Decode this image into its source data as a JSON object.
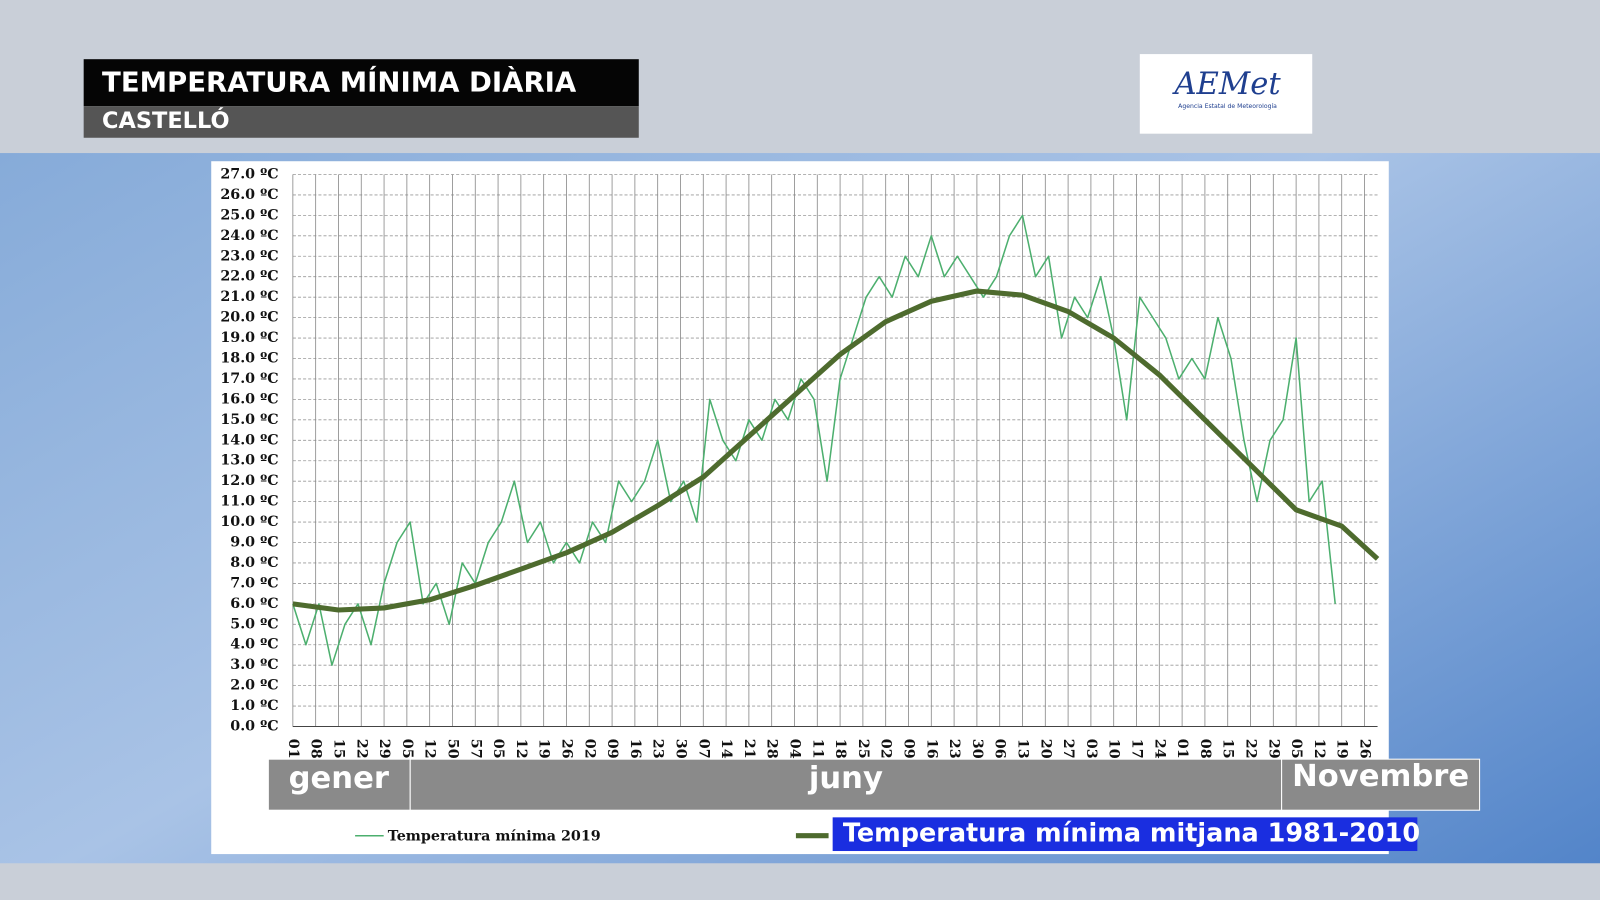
{
  "header": {
    "title": "TEMPERATURA MÍNIMA DIÀRIA",
    "subtitle": "CASTELLÓ"
  },
  "logo": {
    "name": "AEMet",
    "caption": "Agencia Estatal de Meteorología"
  },
  "chart_data": {
    "type": "line",
    "month_bands": [
      "gener",
      "juny",
      "Novembre"
    ],
    "xlim": [
      1,
      334
    ],
    "xticks": [
      {
        "value": 1,
        "label": "01"
      },
      {
        "value": 8,
        "label": "08"
      },
      {
        "value": 15,
        "label": "15"
      },
      {
        "value": 22,
        "label": "22"
      },
      {
        "value": 29,
        "label": "29"
      },
      {
        "value": 36,
        "label": "05"
      },
      {
        "value": 43,
        "label": "12"
      },
      50,
      57,
      {
        "value": 64,
        "label": "05"
      },
      {
        "value": 71,
        "label": "12"
      },
      {
        "value": 78,
        "label": "19"
      },
      {
        "value": 85,
        "label": "26"
      },
      {
        "value": 92,
        "label": "02"
      },
      {
        "value": 99,
        "label": "09"
      },
      {
        "value": 106,
        "label": "16"
      },
      {
        "value": 113,
        "label": "23"
      },
      {
        "value": 120,
        "label": "30"
      },
      {
        "value": 127,
        "label": "07"
      },
      {
        "value": 134,
        "label": "14"
      },
      {
        "value": 141,
        "label": "21"
      },
      {
        "value": 148,
        "label": "28"
      },
      {
        "value": 155,
        "label": "04"
      },
      {
        "value": 162,
        "label": "11"
      },
      {
        "value": 169,
        "label": "18"
      },
      {
        "value": 176,
        "label": "25"
      },
      {
        "value": 183,
        "label": "02"
      },
      {
        "value": 190,
        "label": "09"
      },
      {
        "value": 197,
        "label": "16"
      },
      {
        "value": 204,
        "label": "23"
      },
      {
        "value": 211,
        "label": "30"
      },
      {
        "value": 218,
        "label": "06"
      },
      {
        "value": 225,
        "label": "13"
      },
      {
        "value": 232,
        "label": "20"
      },
      {
        "value": 239,
        "label": "27"
      },
      {
        "value": 246,
        "label": "03"
      },
      {
        "value": 253,
        "label": "10"
      },
      {
        "value": 260,
        "label": "17"
      },
      {
        "value": 267,
        "label": "24"
      },
      {
        "value": 274,
        "label": "01"
      },
      {
        "value": 281,
        "label": "08"
      },
      {
        "value": 288,
        "label": "15"
      },
      {
        "value": 295,
        "label": "22"
      },
      {
        "value": 302,
        "label": "29"
      },
      {
        "value": 309,
        "label": "05"
      },
      {
        "value": 316,
        "label": "12"
      },
      {
        "value": 323,
        "label": "19"
      },
      {
        "value": 330,
        "label": "26"
      }
    ],
    "ylim": [
      0,
      27
    ],
    "yticks": [
      {
        "value": 0,
        "label": "0.0 ºC"
      },
      {
        "value": 1,
        "label": "1.0 ºC"
      },
      {
        "value": 2,
        "label": "2.0 ºC"
      },
      {
        "value": 3,
        "label": "3.0 ºC"
      },
      {
        "value": 4,
        "label": "4.0 ºC"
      },
      {
        "value": 5,
        "label": "5.0 ºC"
      },
      {
        "value": 6,
        "label": "6.0 ºC"
      },
      {
        "value": 7,
        "label": "7.0 ºC"
      },
      {
        "value": 8,
        "label": "8.0 ºC"
      },
      {
        "value": 9,
        "label": "9.0 ºC"
      },
      {
        "value": 10,
        "label": "10.0 ºC"
      },
      {
        "value": 11,
        "label": "11.0 ºC"
      },
      {
        "value": 12,
        "label": "12.0 ºC"
      },
      {
        "value": 13,
        "label": "13.0 ºC"
      },
      {
        "value": 14,
        "label": "14.0 ºC"
      },
      {
        "value": 15,
        "label": "15.0 ºC"
      },
      {
        "value": 16,
        "label": "16.0 ºC"
      },
      {
        "value": 17,
        "label": "17.0 ºC"
      },
      {
        "value": 18,
        "label": "18.0 ºC"
      },
      {
        "value": 19,
        "label": "19.0 ºC"
      },
      {
        "value": 20,
        "label": "20.0 ºC"
      },
      {
        "value": 21,
        "label": "21.0 ºC"
      },
      {
        "value": 22,
        "label": "22.0 ºC"
      },
      {
        "value": 23,
        "label": "23.0 ºC"
      },
      {
        "value": 24,
        "label": "24.0 ºC"
      },
      {
        "value": 25,
        "label": "25.0 ºC"
      },
      {
        "value": 26,
        "label": "26.0 ºC"
      },
      {
        "value": 27,
        "label": "27.0 ºC"
      }
    ],
    "grid": true,
    "series": [
      {
        "name": "Temperatura mínima 2019",
        "color": "#4caf6e",
        "width": 1.5,
        "x": [
          1,
          5,
          9,
          13,
          17,
          21,
          25,
          29,
          33,
          37,
          41,
          45,
          49,
          53,
          57,
          61,
          65,
          69,
          73,
          77,
          81,
          85,
          89,
          93,
          97,
          101,
          105,
          109,
          113,
          117,
          121,
          125,
          129,
          133,
          137,
          141,
          145,
          149,
          153,
          157,
          161,
          165,
          169,
          173,
          177,
          181,
          185,
          189,
          193,
          197,
          201,
          205,
          209,
          213,
          217,
          221,
          225,
          229,
          233,
          237,
          241,
          245,
          249,
          253,
          257,
          261,
          265,
          269,
          273,
          277,
          281,
          285,
          289,
          293,
          297,
          301,
          305,
          309,
          313,
          317,
          321
        ],
        "values": [
          6,
          4,
          6,
          3,
          5,
          6,
          4,
          7,
          9,
          10,
          6,
          7,
          5,
          8,
          7,
          9,
          10,
          12,
          9,
          10,
          8,
          9,
          8,
          10,
          9,
          12,
          11,
          12,
          14,
          11,
          12,
          10,
          16,
          14,
          13,
          15,
          14,
          16,
          15,
          17,
          16,
          12,
          17,
          19,
          21,
          22,
          21,
          23,
          22,
          24,
          22,
          23,
          22,
          21,
          22,
          24,
          25,
          22,
          23,
          19,
          21,
          20,
          22,
          19,
          15,
          21,
          20,
          19,
          17,
          18,
          17,
          20,
          18,
          14,
          11,
          14,
          15,
          19,
          11,
          12,
          6
        ]
      },
      {
        "name": "Temperatura mínima mitjana 1981-2010",
        "color": "#4e6b2e",
        "width": 5,
        "x": [
          1,
          15,
          29,
          43,
          57,
          71,
          85,
          99,
          113,
          127,
          141,
          155,
          169,
          183,
          197,
          211,
          225,
          239,
          253,
          267,
          281,
          295,
          309,
          323,
          334
        ],
        "values": [
          6.0,
          5.7,
          5.8,
          6.2,
          6.9,
          7.7,
          8.5,
          9.5,
          10.8,
          12.2,
          14.2,
          16.2,
          18.2,
          19.8,
          20.8,
          21.3,
          21.1,
          20.3,
          19.0,
          17.2,
          15.0,
          12.8,
          10.6,
          9.8,
          8.2
        ]
      }
    ]
  }
}
